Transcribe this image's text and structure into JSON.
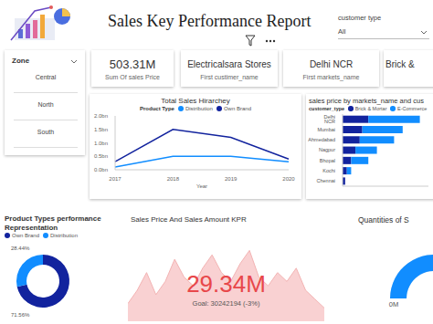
{
  "title": "Sales Key Performance Report",
  "slicers": [
    {
      "title": "customer type",
      "value": "All"
    },
    {
      "title": "Zone",
      "items": [
        "Central",
        "North",
        "South"
      ]
    }
  ],
  "cards": [
    {
      "value": "503.31M",
      "label": "Sum Of sales Price"
    },
    {
      "value": "Electricalsara Stores",
      "label": "First custimer_name"
    },
    {
      "value": "Delhi NCR",
      "label": "First markets_name"
    },
    {
      "value": "Brick &"
    }
  ],
  "chart_data": [
    {
      "type": "line",
      "title": "Total Sales Hirarchey",
      "legend_title": "Product Type",
      "legend": "top",
      "xlabel": "Year",
      "categories": [
        "2017",
        "2018",
        "2019",
        "2020"
      ],
      "series": [
        {
          "name": "Distribution",
          "color": "#118DFF",
          "values": [
            0.1,
            0.5,
            0.5,
            0.3
          ]
        },
        {
          "name": "Own Brand",
          "color": "#12239E",
          "values": [
            0.3,
            1.5,
            1.2,
            0.4
          ]
        }
      ],
      "ylim": [
        0,
        2
      ],
      "yticks": [
        {
          "value": 0,
          "label": "0.0bn"
        },
        {
          "value": 0.5,
          "label": "0.5bn"
        },
        {
          "value": 1,
          "label": "1.0bn"
        },
        {
          "value": 1.5,
          "label": "1.5bn"
        },
        {
          "value": 2,
          "label": "2.0bn"
        }
      ],
      "grid": false
    },
    {
      "type": "bar",
      "orientation": "horizontal",
      "stacked": true,
      "title": "sales price by markets_name and cus",
      "legend_title": "customer_type",
      "legend": "top",
      "categories": [
        "Delhi NCR",
        "Mumbai",
        "Ahmedabad",
        "Nagpur",
        "Bhopal",
        "Kochi",
        "Chennai"
      ],
      "series": [
        {
          "name": "Brick & Mortar",
          "color": "#12239E",
          "values": [
            30,
            23,
            20,
            15,
            10,
            5,
            3
          ]
        },
        {
          "name": "E-Commerce",
          "color": "#118DFF",
          "values": [
            60,
            47,
            40,
            25,
            20,
            5,
            0
          ]
        }
      ],
      "xlim": [
        0,
        100
      ],
      "tick_labels": "y"
    },
    {
      "type": "pie",
      "title": "Product Types performance Representation",
      "legend": "top",
      "categories": [
        "Own Brand",
        "Distribution"
      ],
      "values": [
        71.56,
        28.44
      ],
      "value_labels": [
        "71.56%",
        "28.44%"
      ],
      "colors": [
        "#12239E",
        "#118DFF"
      ],
      "data_labels": true
    },
    {
      "type": "kpi",
      "title": "Sales Price And Sales Amount KPR",
      "value_label": "29.34M",
      "goal_label": "Goal: 30242194 (-3%)",
      "values": [
        20,
        35,
        55,
        30,
        45,
        70,
        50,
        40,
        60,
        75,
        55,
        45,
        65,
        80,
        50,
        40,
        55,
        45,
        60,
        35,
        25,
        15
      ],
      "color": "#E8474A",
      "ylim": [
        0,
        100
      ],
      "tick_labels": false
    },
    {
      "type": "gauge",
      "title": "Quantities of S",
      "values": [
        60
      ],
      "color": "#118DFF",
      "ylim": [
        0,
        100
      ],
      "yticks": [
        {
          "value": 0,
          "label": "0M"
        }
      ]
    }
  ]
}
